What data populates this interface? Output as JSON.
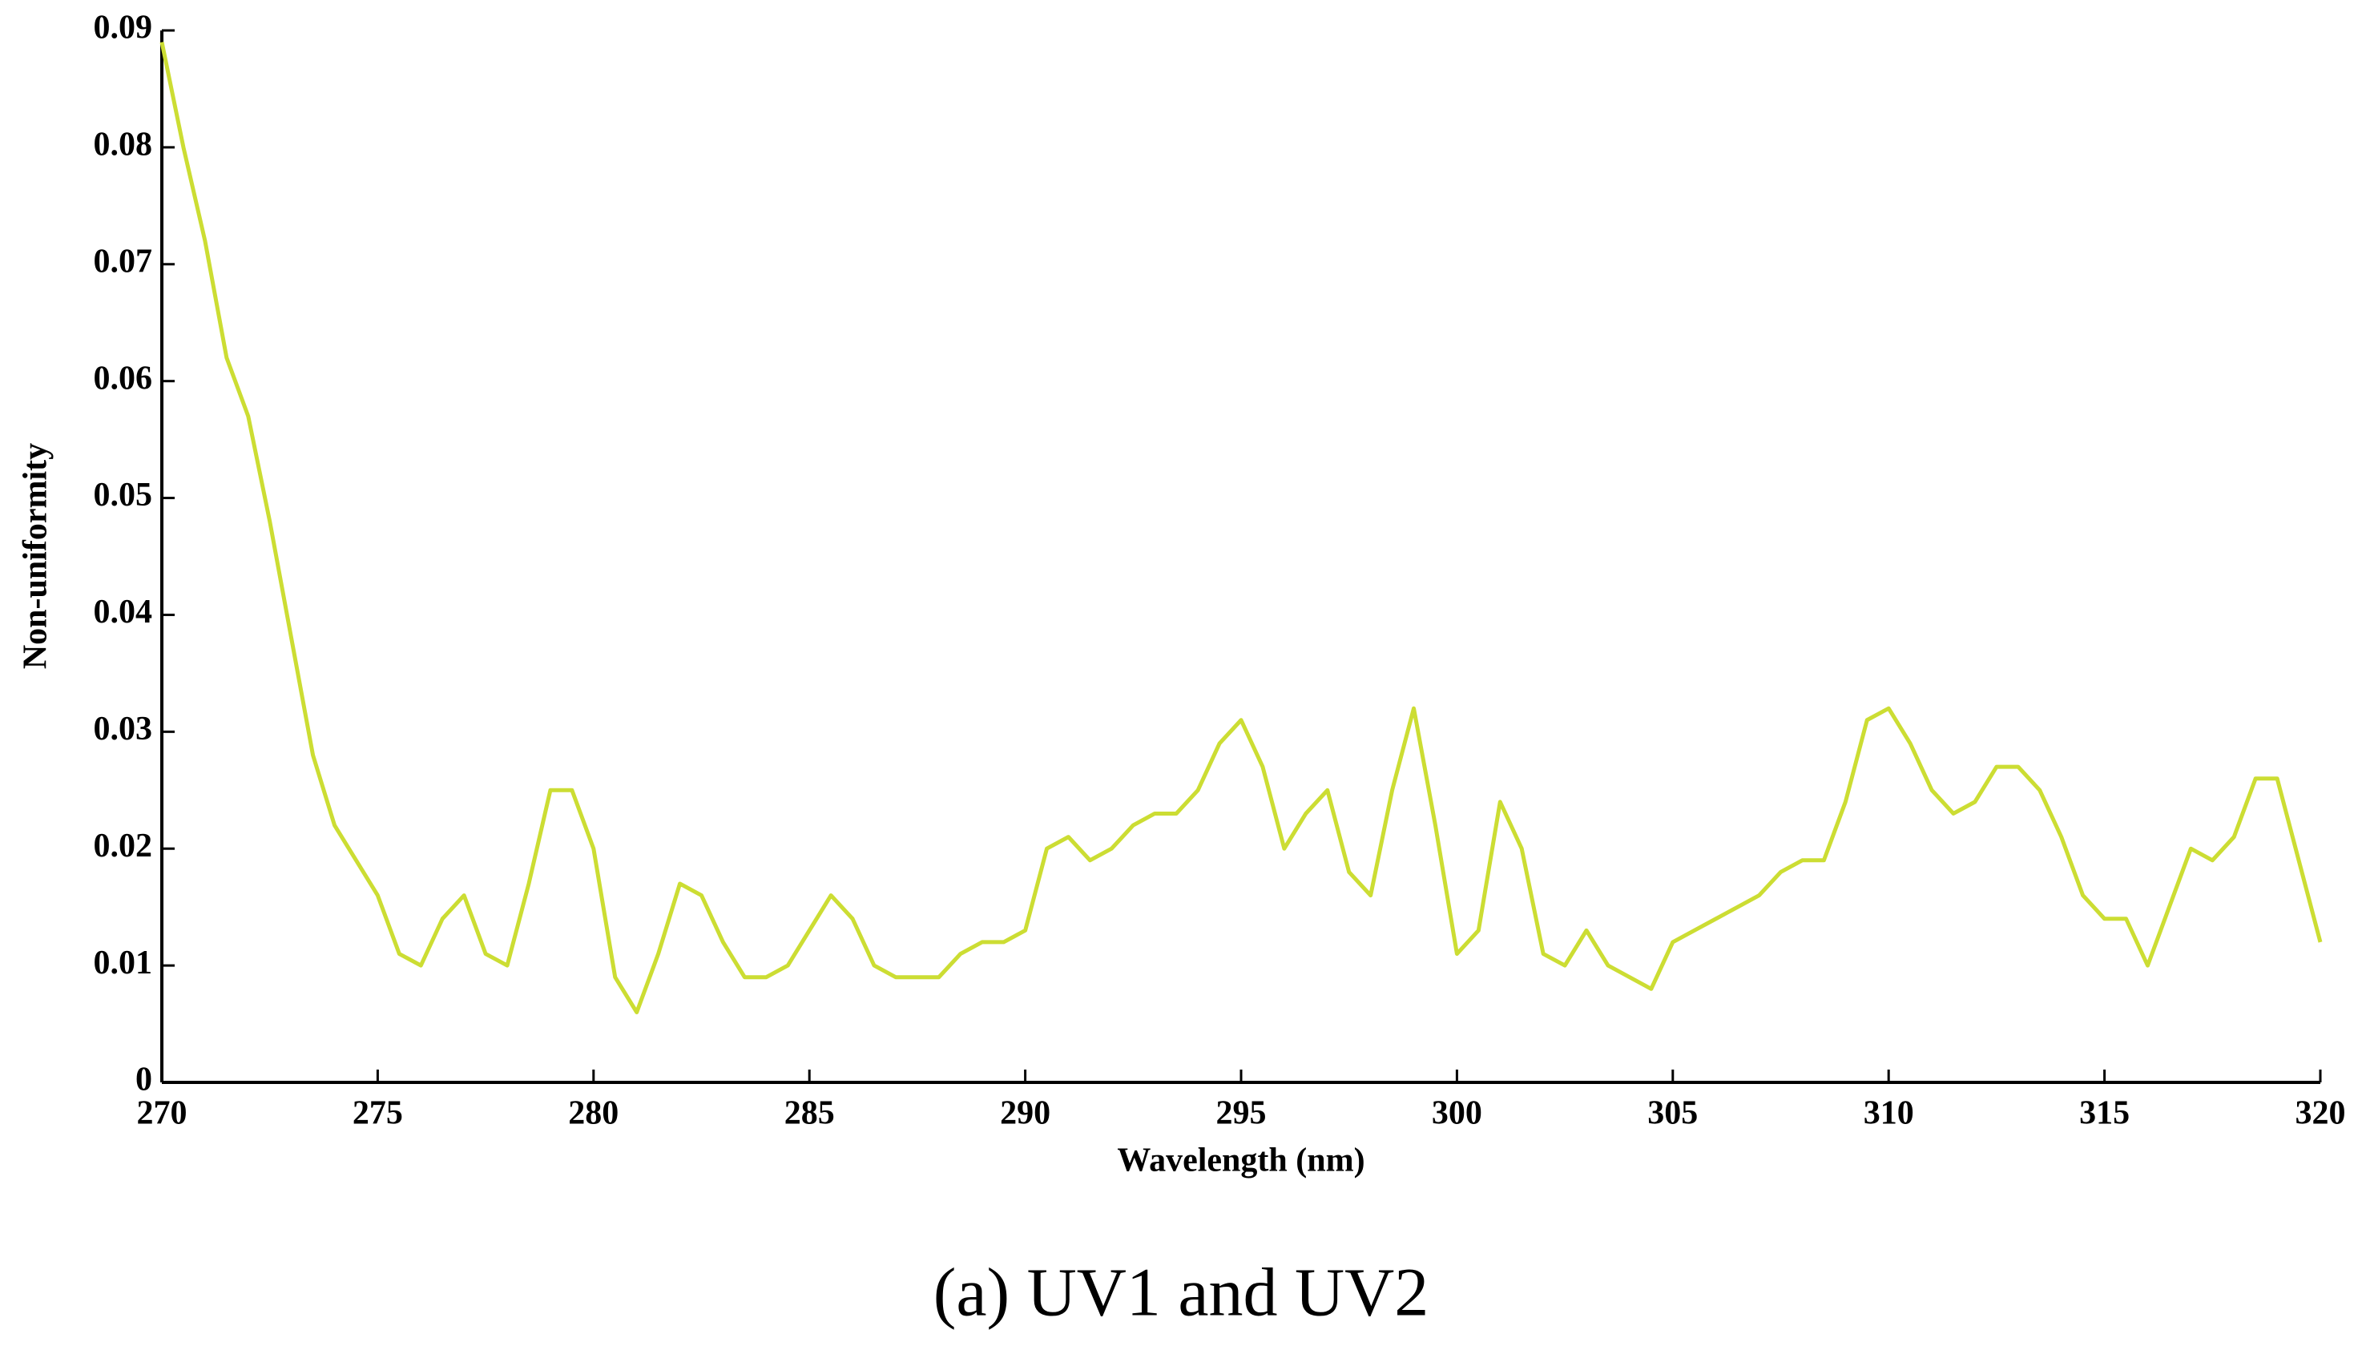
{
  "chart_data": {
    "type": "line",
    "xlabel": "Wavelength (nm)",
    "ylabel": "Non-uniformity",
    "caption": "(a) UV1 and UV2",
    "x": [
      270,
      270.5,
      271,
      271.5,
      272,
      272.5,
      273,
      273.5,
      274,
      274.5,
      275,
      275.5,
      276,
      276.5,
      277,
      277.5,
      278,
      278.5,
      279,
      279.5,
      280,
      280.5,
      281,
      281.5,
      282,
      282.5,
      283,
      283.5,
      284,
      284.5,
      285,
      285.5,
      286,
      286.5,
      287,
      287.5,
      288,
      288.5,
      289,
      289.5,
      290,
      290.5,
      291,
      291.5,
      292,
      292.5,
      293,
      293.5,
      294,
      294.5,
      295,
      295.5,
      296,
      296.5,
      297,
      297.5,
      298,
      298.5,
      299,
      299.5,
      300,
      300.5,
      301,
      301.5,
      302,
      302.5,
      303,
      303.5,
      304,
      304.5,
      305,
      305.5,
      306,
      306.5,
      307,
      307.5,
      308,
      308.5,
      309,
      309.5,
      310,
      310.5,
      311,
      311.5,
      312,
      312.5,
      313,
      313.5,
      314,
      314.5,
      315,
      315.5,
      316,
      316.5,
      317,
      317.5,
      318,
      318.5,
      319,
      319.5,
      320
    ],
    "series": [
      {
        "color": "#ccdd33",
        "values": [
          0.089,
          0.08,
          0.072,
          0.062,
          0.057,
          0.048,
          0.038,
          0.028,
          0.022,
          0.019,
          0.016,
          0.011,
          0.01,
          0.014,
          0.016,
          0.011,
          0.01,
          0.017,
          0.025,
          0.025,
          0.02,
          0.009,
          0.006,
          0.011,
          0.017,
          0.016,
          0.012,
          0.009,
          0.009,
          0.01,
          0.013,
          0.016,
          0.014,
          0.01,
          0.009,
          0.009,
          0.009,
          0.011,
          0.012,
          0.012,
          0.013,
          0.02,
          0.021,
          0.019,
          0.02,
          0.022,
          0.023,
          0.023,
          0.025,
          0.029,
          0.031,
          0.027,
          0.02,
          0.023,
          0.025,
          0.018,
          0.016,
          0.025,
          0.032,
          0.022,
          0.011,
          0.013,
          0.024,
          0.02,
          0.011,
          0.01,
          0.013,
          0.01,
          0.009,
          0.008,
          0.012,
          0.013,
          0.014,
          0.015,
          0.016,
          0.018,
          0.019,
          0.019,
          0.024,
          0.031,
          0.032,
          0.029,
          0.025,
          0.023,
          0.024,
          0.027,
          0.027,
          0.025,
          0.021,
          0.016,
          0.014,
          0.014,
          0.01,
          0.015,
          0.02,
          0.019,
          0.021,
          0.026,
          0.026,
          0.019,
          0.012
        ]
      }
    ],
    "xlim": [
      270,
      320
    ],
    "xticks": [
      270,
      275,
      280,
      285,
      290,
      295,
      300,
      305,
      310,
      315,
      320
    ],
    "ylim": [
      0,
      0.09
    ],
    "yticks": [
      0,
      0.01,
      0.02,
      0.03,
      0.04,
      0.05,
      0.06,
      0.07,
      0.08,
      0.09
    ]
  }
}
